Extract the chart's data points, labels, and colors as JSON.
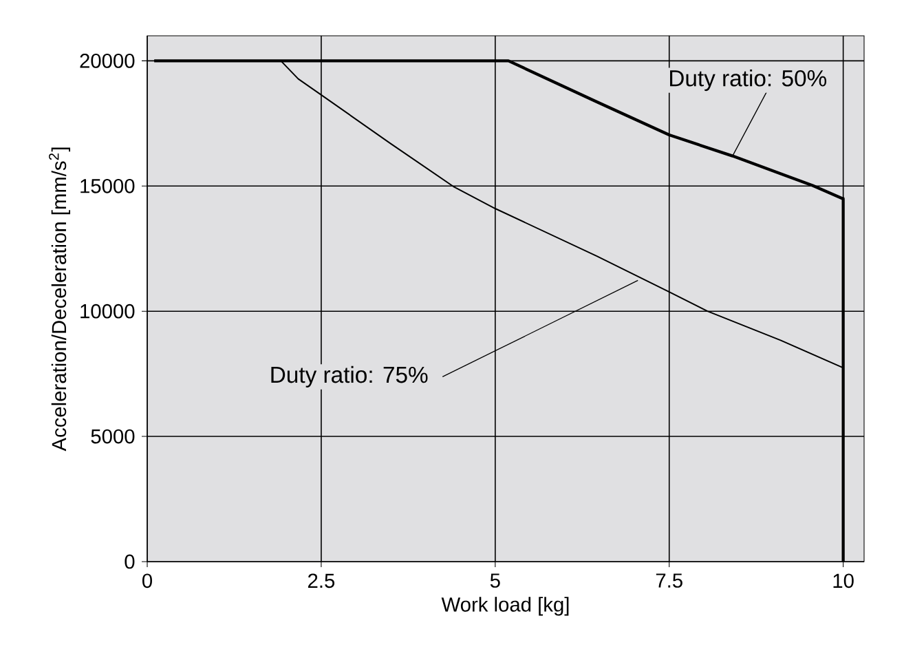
{
  "chart_data": {
    "type": "line",
    "xlabel": "Work load [kg]",
    "ylabel": "Acceleration/Deceleration [mm/s$^{2}$]",
    "xlim": [
      0,
      10.3
    ],
    "ylim": [
      0,
      21000
    ],
    "xticks": [
      0,
      2.5,
      5,
      7.5,
      10
    ],
    "yticks": [
      0,
      5000,
      10000,
      15000,
      20000
    ],
    "grid": true,
    "series": [
      {
        "color": "#000000",
        "x": [
          0.1,
          5.19,
          6.46,
          7.5,
          8.41,
          9.56,
          9.99,
          10,
          10
        ],
        "values": [
          20000,
          20000,
          18360,
          17040,
          16200,
          15020,
          14500,
          14500,
          0
        ]
      },
      {
        "color": "#000000",
        "x": [
          0.1,
          1.92,
          2.17,
          2.5,
          3.49,
          4.41,
          5.0,
          6.46,
          7.5,
          8.05,
          9.1,
          10,
          10
        ],
        "values": [
          20000,
          20000,
          19280,
          18640,
          16710,
          14960,
          14100,
          12200,
          10770,
          10000,
          8840,
          7740,
          0
        ]
      }
    ],
    "annotations": [
      {
        "text": "Duty ratio: 50%",
        "x": 8.41,
        "y": 16200
      },
      {
        "text": "Duty ratio: 75%",
        "x": 7.05,
        "y": 11230
      }
    ]
  }
}
